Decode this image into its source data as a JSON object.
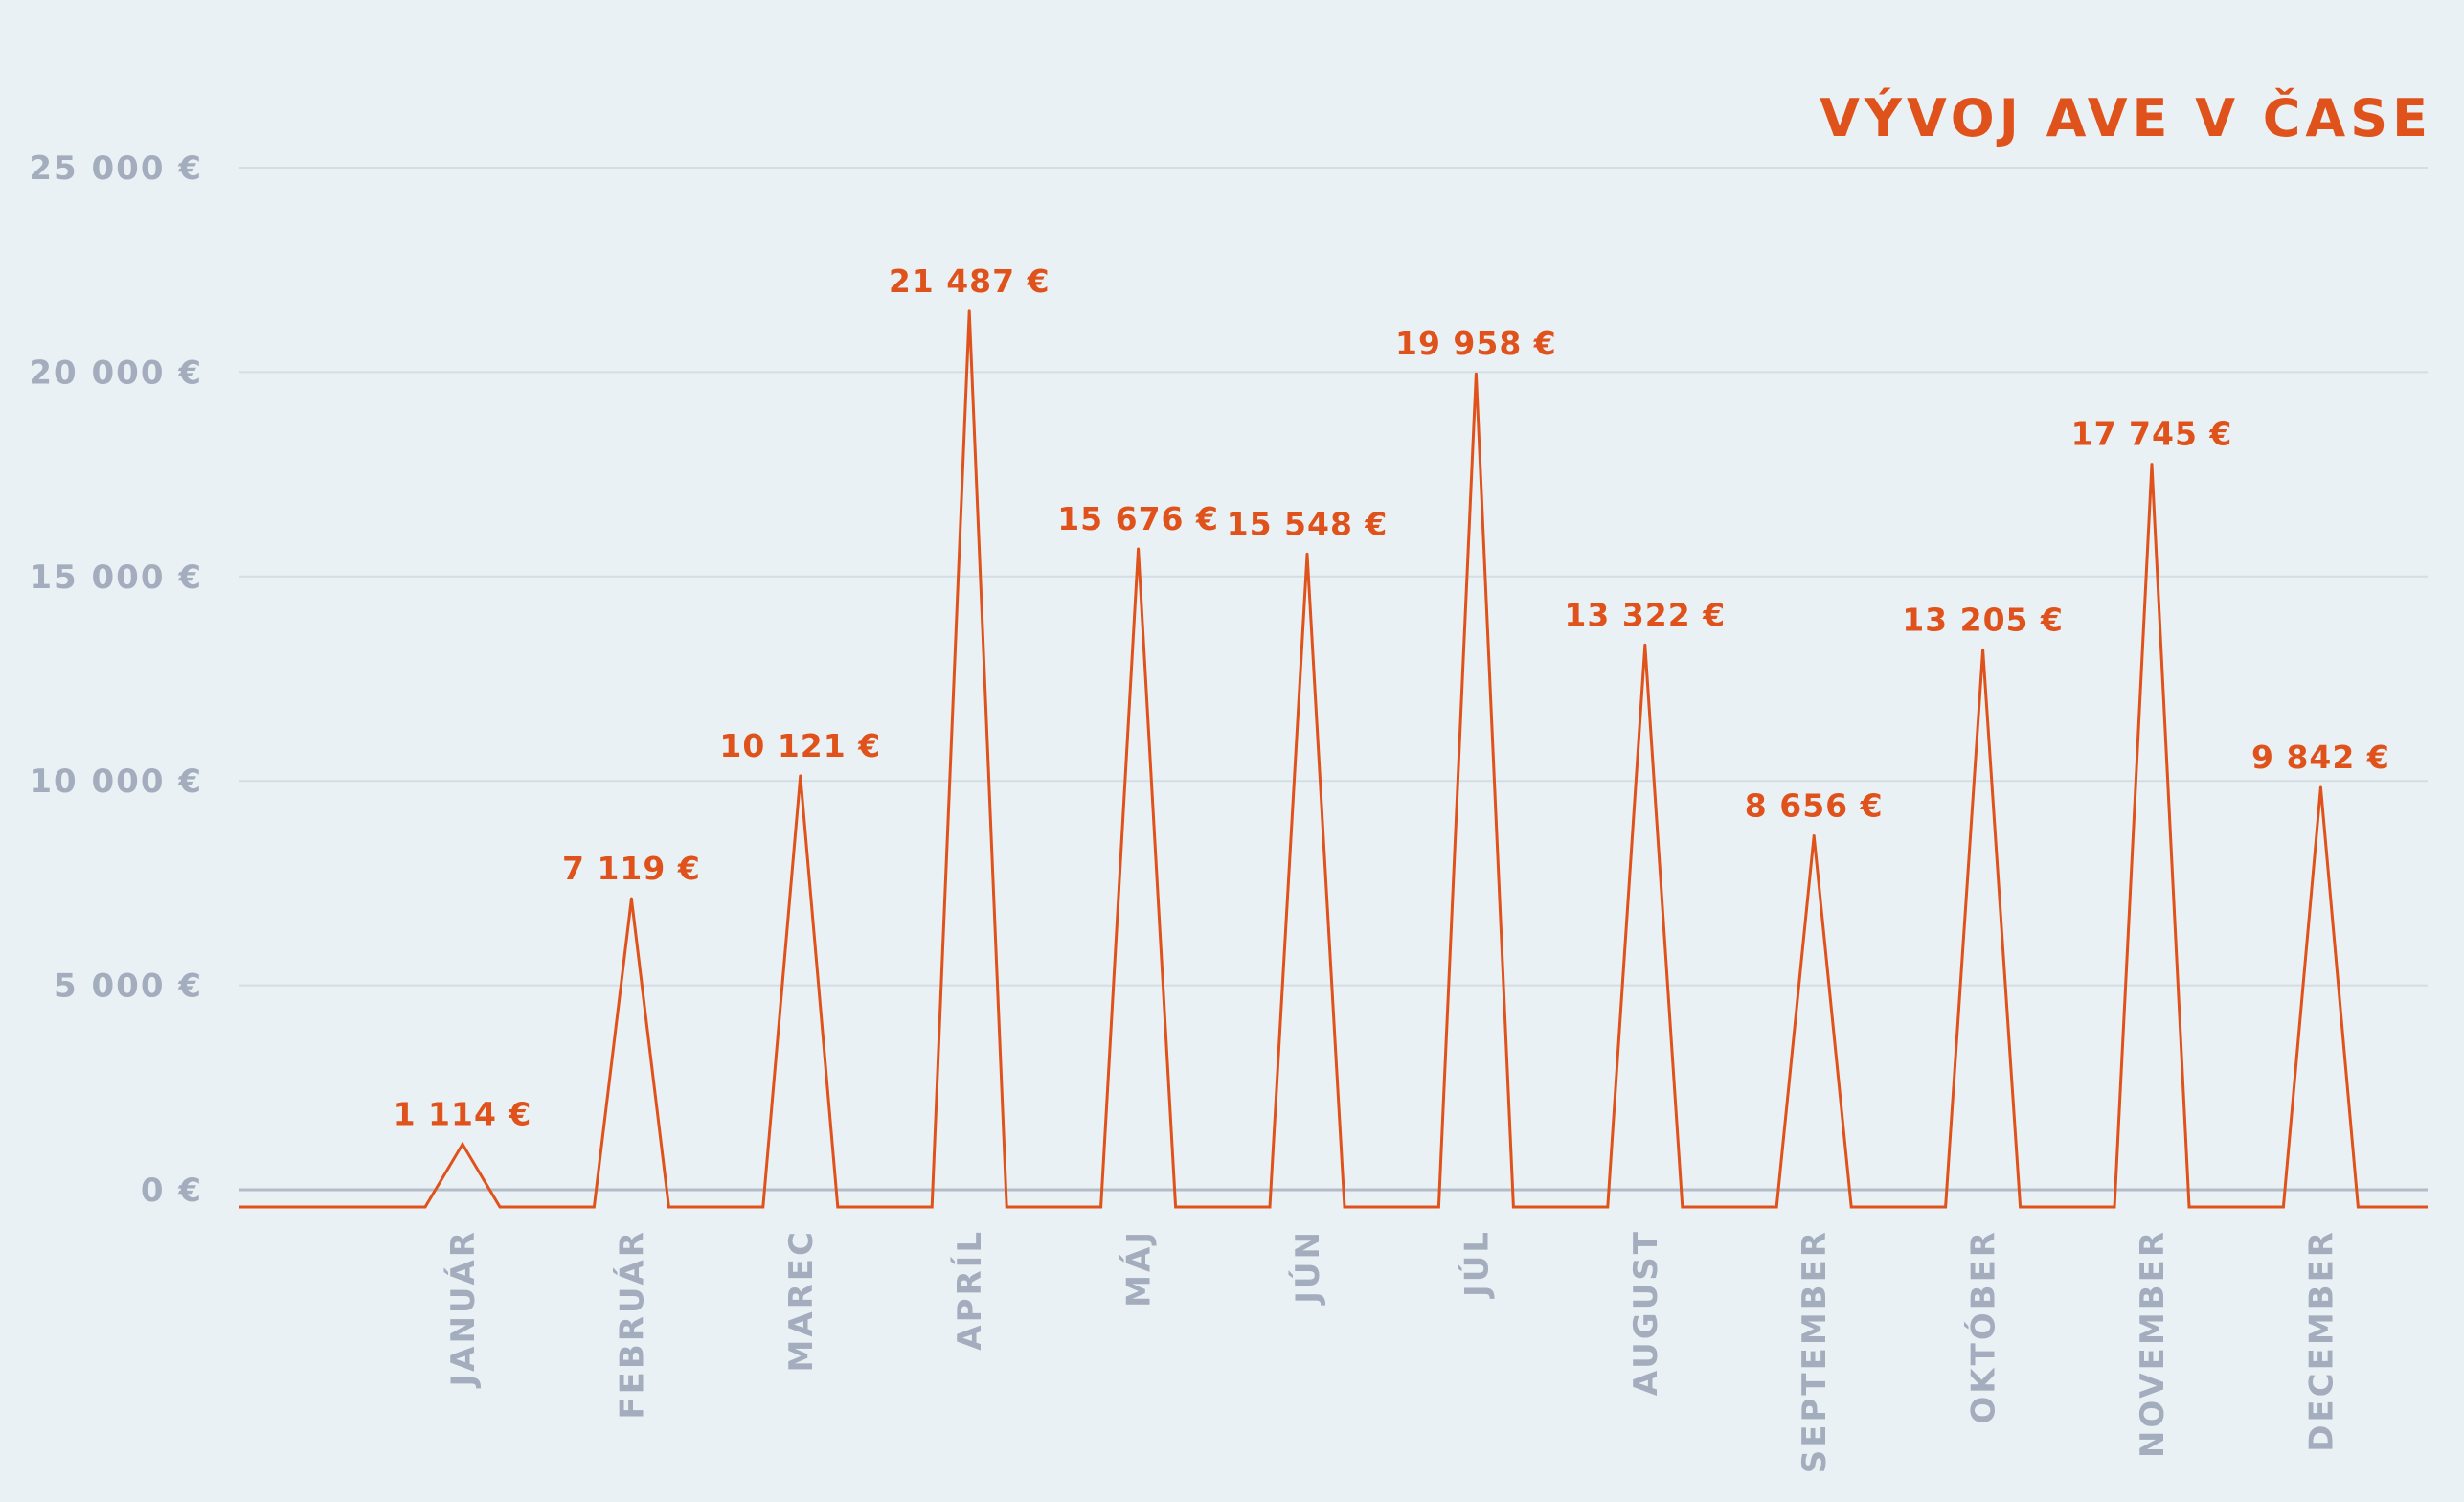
{
  "chart_data": {
    "type": "line",
    "title": "VÝVOJ AVE V ČASE",
    "xlabel": "",
    "ylabel": "",
    "categories": [
      "JANUÁR",
      "FEBRUÁR",
      "MAREC",
      "APRÍL",
      "MÁJ",
      "JÚN",
      "JÚL",
      "AUGUST",
      "SEPTEMBER",
      "OKTÓBER",
      "NOVEMBER",
      "DECEMBER"
    ],
    "series": [
      {
        "values": [
          1114,
          7119,
          10121,
          21487,
          15676,
          15548,
          19958,
          13322,
          8656,
          13205,
          17745,
          9842
        ],
        "labels": [
          "1 114 €",
          "7 119 €",
          "10 121 €",
          "21 487 €",
          "15 676 €",
          "15 548 €",
          "19 958 €",
          "13 322 €",
          "8 656 €",
          "13 205 €",
          "17 745 €",
          "9 842 €"
        ]
      }
    ],
    "yticks": [
      0,
      5000,
      10000,
      15000,
      20000,
      25000
    ],
    "ytick_labels": [
      "0 €",
      "5 000 €",
      "10 000 €",
      "15 000 €",
      "20 000 €",
      "25 000 €"
    ],
    "ylim": [
      0,
      25000
    ],
    "grid": true,
    "legend": "none",
    "colors": {
      "line": "#e0521b",
      "title": "#e0521b",
      "data_labels": "#e0521b",
      "axis_labels": "#a3adbd",
      "grid": "#d3dde4",
      "baseline": "#b3bcc8",
      "background": "#eaf1f4"
    }
  }
}
